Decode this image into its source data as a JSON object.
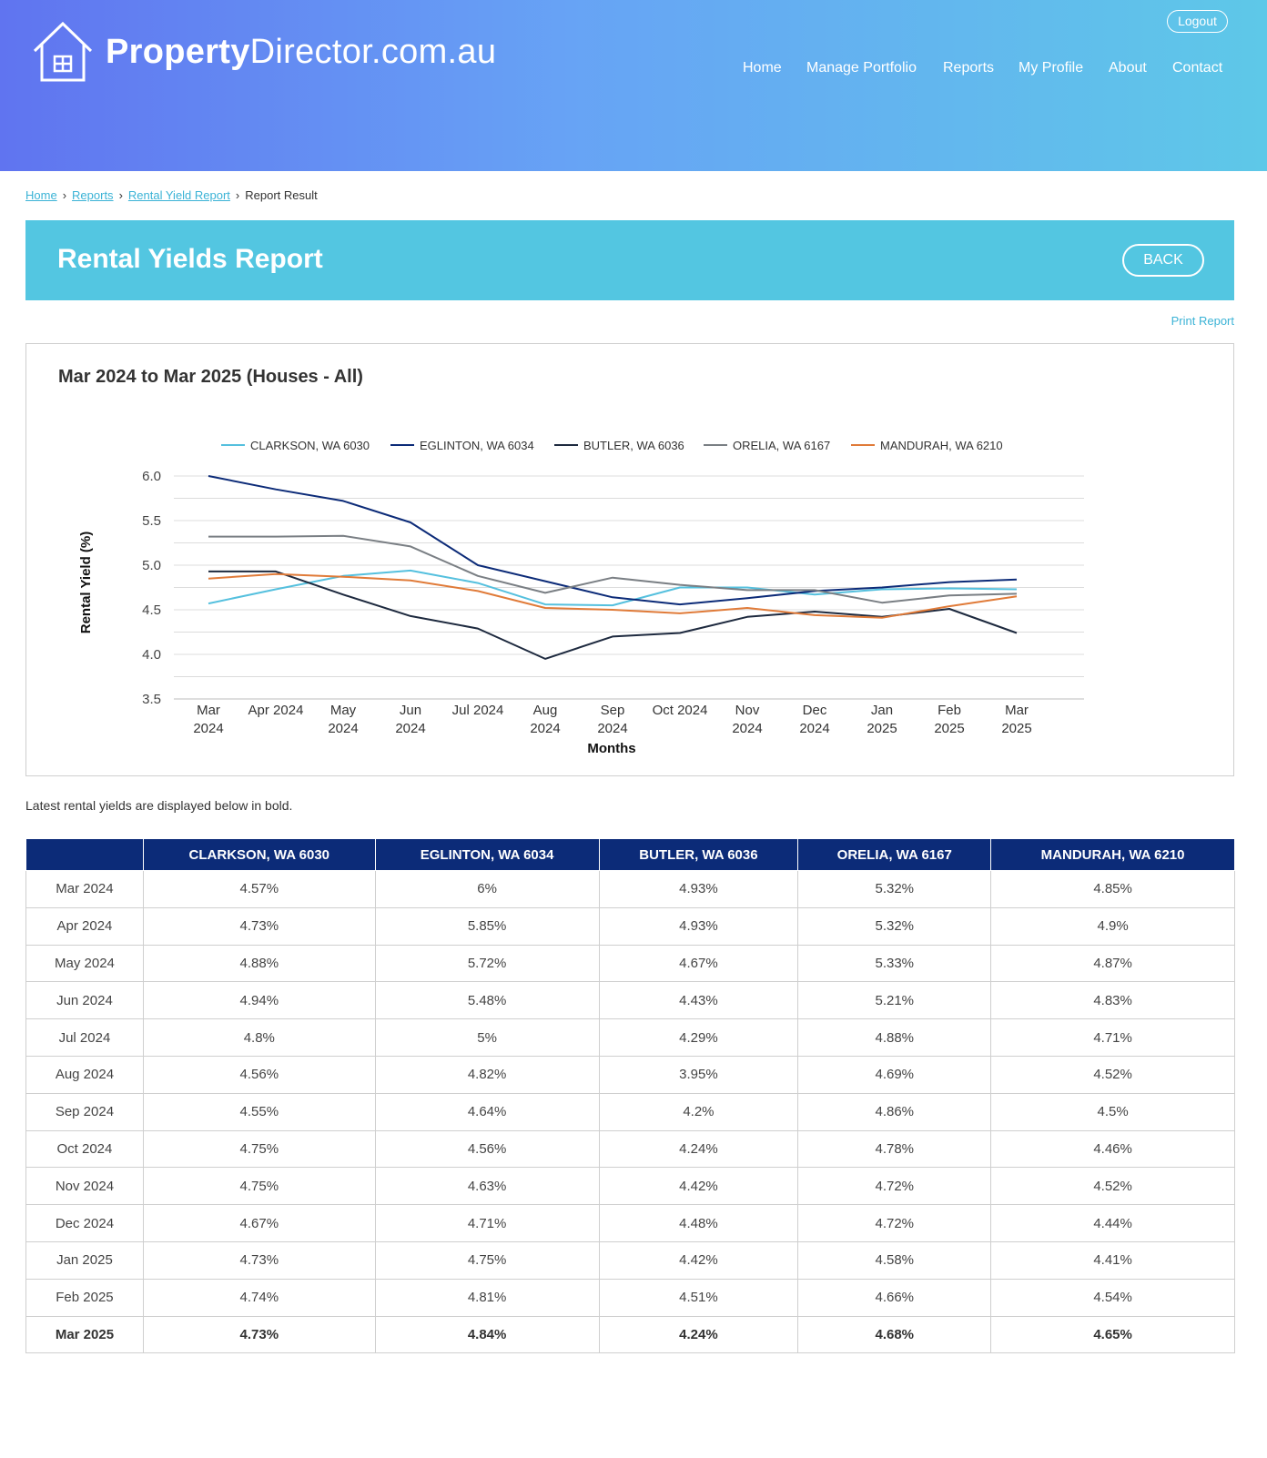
{
  "brand": {
    "bold": "Property",
    "regular": "Director.com.au"
  },
  "header": {
    "logout": "Logout"
  },
  "nav": [
    "Home",
    "Manage Portfolio",
    "Reports",
    "My Profile",
    "About",
    "Contact"
  ],
  "breadcrumb": {
    "home": "Home",
    "reports": "Reports",
    "rental_yield": "Rental Yield Report",
    "current": "Report Result"
  },
  "page": {
    "title": "Rental Yields Report",
    "back": "BACK",
    "print": "Print Report"
  },
  "chart_title": "Mar 2024 to Mar 2025 (Houses - All)",
  "note": "Latest rental yields are displayed below in bold.",
  "chart_data": {
    "type": "line",
    "x": [
      "Mar 2024",
      "Apr 2024",
      "May 2024",
      "Jun 2024",
      "Jul 2024",
      "Aug 2024",
      "Sep 2024",
      "Oct 2024",
      "Nov 2024",
      "Dec 2024",
      "Jan 2025",
      "Feb 2025",
      "Mar 2025"
    ],
    "xlabel": "Months",
    "ylabel": "Rental Yield (%)",
    "ylim": [
      3.5,
      6.0
    ],
    "yticks": [
      "6.0",
      "5.5",
      "5.0",
      "4.5",
      "4.0",
      "3.5"
    ],
    "legend": "top",
    "grid": true,
    "series": [
      {
        "name": "CLARKSON, WA 6030",
        "color": "#55c0de",
        "values": [
          4.57,
          4.73,
          4.88,
          4.94,
          4.8,
          4.56,
          4.55,
          4.75,
          4.75,
          4.67,
          4.73,
          4.74,
          4.73
        ]
      },
      {
        "name": "EGLINTON, WA 6034",
        "color": "#0c2b78",
        "values": [
          6,
          5.85,
          5.72,
          5.48,
          5,
          4.82,
          4.64,
          4.56,
          4.63,
          4.71,
          4.75,
          4.81,
          4.84
        ]
      },
      {
        "name": "BUTLER, WA 6036",
        "color": "#1e2a3f",
        "values": [
          4.93,
          4.93,
          4.67,
          4.43,
          4.29,
          3.95,
          4.2,
          4.24,
          4.42,
          4.48,
          4.42,
          4.51,
          4.24
        ]
      },
      {
        "name": "ORELIA, WA 6167",
        "color": "#7a7f84",
        "values": [
          5.32,
          5.32,
          5.33,
          5.21,
          4.88,
          4.69,
          4.86,
          4.78,
          4.72,
          4.72,
          4.58,
          4.66,
          4.68
        ]
      },
      {
        "name": "MANDURAH, WA 6210",
        "color": "#e07b39",
        "values": [
          4.85,
          4.9,
          4.87,
          4.83,
          4.71,
          4.52,
          4.5,
          4.46,
          4.52,
          4.44,
          4.41,
          4.54,
          4.65
        ]
      }
    ]
  },
  "table": {
    "headers": [
      "",
      "CLARKSON, WA 6030",
      "EGLINTON, WA 6034",
      "BUTLER, WA 6036",
      "ORELIA, WA 6167",
      "MANDURAH, WA 6210"
    ],
    "rows": [
      [
        "Mar 2024",
        "4.57%",
        "6%",
        "4.93%",
        "5.32%",
        "4.85%"
      ],
      [
        "Apr 2024",
        "4.73%",
        "5.85%",
        "4.93%",
        "5.32%",
        "4.9%"
      ],
      [
        "May 2024",
        "4.88%",
        "5.72%",
        "4.67%",
        "5.33%",
        "4.87%"
      ],
      [
        "Jun 2024",
        "4.94%",
        "5.48%",
        "4.43%",
        "5.21%",
        "4.83%"
      ],
      [
        "Jul 2024",
        "4.8%",
        "5%",
        "4.29%",
        "4.88%",
        "4.71%"
      ],
      [
        "Aug 2024",
        "4.56%",
        "4.82%",
        "3.95%",
        "4.69%",
        "4.52%"
      ],
      [
        "Sep 2024",
        "4.55%",
        "4.64%",
        "4.2%",
        "4.86%",
        "4.5%"
      ],
      [
        "Oct 2024",
        "4.75%",
        "4.56%",
        "4.24%",
        "4.78%",
        "4.46%"
      ],
      [
        "Nov 2024",
        "4.75%",
        "4.63%",
        "4.42%",
        "4.72%",
        "4.52%"
      ],
      [
        "Dec 2024",
        "4.67%",
        "4.71%",
        "4.48%",
        "4.72%",
        "4.44%"
      ],
      [
        "Jan 2025",
        "4.73%",
        "4.75%",
        "4.42%",
        "4.58%",
        "4.41%"
      ],
      [
        "Feb 2025",
        "4.74%",
        "4.81%",
        "4.51%",
        "4.66%",
        "4.54%"
      ],
      [
        "Mar 2025",
        "4.73%",
        "4.84%",
        "4.24%",
        "4.68%",
        "4.65%"
      ]
    ]
  }
}
